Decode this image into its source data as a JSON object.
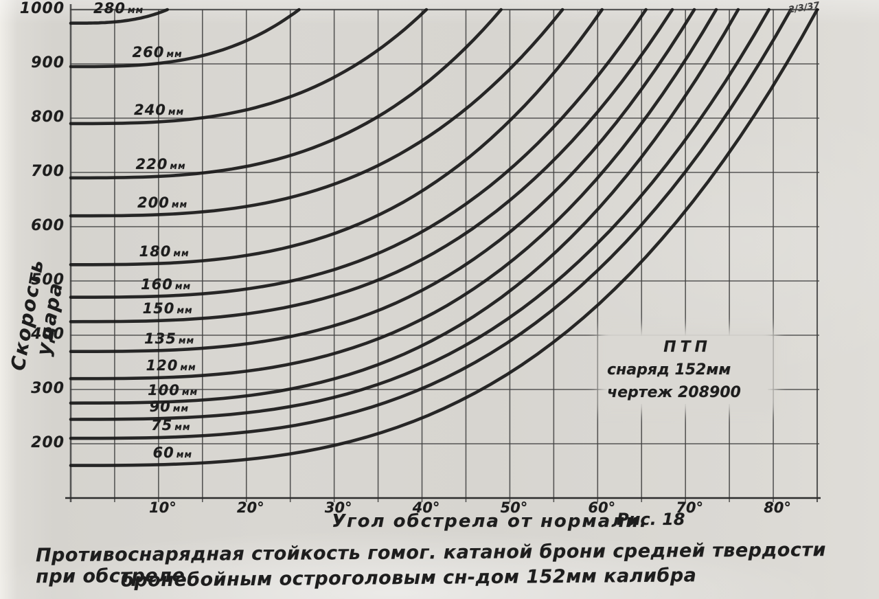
{
  "page": {
    "corner_note": "2/3/37",
    "figure_label": "Рис. 18",
    "caption_line1": "Противоснарядная стойкость гомог. катаной брони средней твердости при обстреле",
    "caption_line2": "бронебойным остроголовым сн-дом 152мм калибра"
  },
  "chart_data": {
    "type": "line",
    "title": "",
    "xlabel": "Угол обстрела от нормали.",
    "ylabel": "Скорость удара",
    "xlim": [
      0,
      85
    ],
    "ylim": [
      100,
      1000
    ],
    "x_ticks": [
      10,
      20,
      30,
      40,
      50,
      60,
      70,
      80
    ],
    "x_tick_suffix": "°",
    "y_ticks": [
      1000,
      900,
      800,
      700,
      600,
      500,
      400,
      300,
      200
    ],
    "grid": {
      "x_step_deg": 5,
      "y_step": 100,
      "visible": true
    },
    "legend_position": "labels-above-curves",
    "annotation_box": {
      "line1": "ПТП",
      "line2": "снаряд 152мм",
      "line3": "чертеж 208900"
    },
    "curve_model": "equal-penetration curves: v(a) = v0*(1+(1000/v0-1)*(a/a_top)^3), values read from scan",
    "series": [
      {
        "label": "280",
        "unit": "мм",
        "v_at_0deg": 975,
        "reaches_top_at_deg": 11
      },
      {
        "label": "260",
        "unit": "мм",
        "v_at_0deg": 895,
        "reaches_top_at_deg": 26
      },
      {
        "label": "240",
        "unit": "мм",
        "v_at_0deg": 790,
        "reaches_top_at_deg": 40.5
      },
      {
        "label": "220",
        "unit": "мм",
        "v_at_0deg": 690,
        "reaches_top_at_deg": 49
      },
      {
        "label": "200",
        "unit": "мм",
        "v_at_0deg": 620,
        "reaches_top_at_deg": 56
      },
      {
        "label": "180",
        "unit": "мм",
        "v_at_0deg": 530,
        "reaches_top_at_deg": 60.5
      },
      {
        "label": "160",
        "unit": "мм",
        "v_at_0deg": 470,
        "reaches_top_at_deg": 65.5
      },
      {
        "label": "150",
        "unit": "мм",
        "v_at_0deg": 425,
        "reaches_top_at_deg": 68.5
      },
      {
        "label": "135",
        "unit": "мм",
        "v_at_0deg": 370,
        "reaches_top_at_deg": 71
      },
      {
        "label": "120",
        "unit": "мм",
        "v_at_0deg": 320,
        "reaches_top_at_deg": 73.5
      },
      {
        "label": "100",
        "unit": "мм",
        "v_at_0deg": 275,
        "reaches_top_at_deg": 76
      },
      {
        "label": "90",
        "unit": "мм",
        "v_at_0deg": 245,
        "reaches_top_at_deg": 79.5
      },
      {
        "label": "75",
        "unit": "мм",
        "v_at_0deg": 210,
        "reaches_top_at_deg": 82
      },
      {
        "label": "60",
        "unit": "мм",
        "v_at_0deg": 160,
        "reaches_top_at_deg": 85
      }
    ]
  }
}
